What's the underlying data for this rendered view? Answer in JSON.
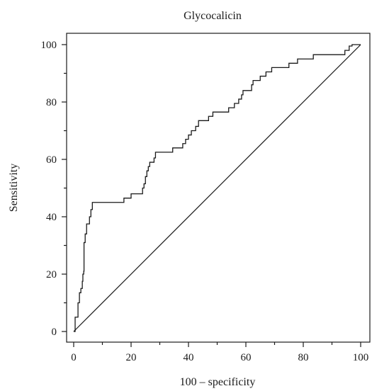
{
  "chart_data": {
    "type": "line",
    "title": "Glycocalicin",
    "xlabel": "100 – specificity",
    "ylabel": "Sensitivity",
    "xlim": [
      0,
      100
    ],
    "ylim": [
      0,
      100
    ],
    "xticks": [
      0,
      20,
      40,
      60,
      80,
      100
    ],
    "yticks": [
      0,
      20,
      40,
      60,
      80,
      100
    ],
    "grid": false,
    "series": [
      {
        "kind": "step",
        "points": [
          [
            0,
            0
          ],
          [
            0.5,
            0
          ],
          [
            0.5,
            5
          ],
          [
            1.5,
            5
          ],
          [
            1.5,
            10
          ],
          [
            2,
            10
          ],
          [
            2,
            13.5
          ],
          [
            2.5,
            13.5
          ],
          [
            2.5,
            15
          ],
          [
            3,
            15
          ],
          [
            3,
            17.5
          ],
          [
            3.2,
            17.5
          ],
          [
            3.2,
            20
          ],
          [
            3.5,
            20
          ],
          [
            3.5,
            21
          ],
          [
            3.6,
            21
          ],
          [
            3.6,
            31
          ],
          [
            4,
            31
          ],
          [
            4,
            34
          ],
          [
            4.5,
            34
          ],
          [
            4.5,
            37.5
          ],
          [
            5.5,
            37.5
          ],
          [
            5.5,
            40
          ],
          [
            6,
            40
          ],
          [
            6,
            42.5
          ],
          [
            6.5,
            42.5
          ],
          [
            6.5,
            45
          ],
          [
            17.5,
            45
          ],
          [
            17.5,
            46.5
          ],
          [
            20,
            46.5
          ],
          [
            20,
            48
          ],
          [
            24,
            48
          ],
          [
            24,
            50
          ],
          [
            24.5,
            50
          ],
          [
            24.5,
            51.5
          ],
          [
            25,
            51.5
          ],
          [
            25,
            54
          ],
          [
            25.5,
            54
          ],
          [
            25.5,
            56
          ],
          [
            26,
            56
          ],
          [
            26,
            57.5
          ],
          [
            26.5,
            57.5
          ],
          [
            26.5,
            59
          ],
          [
            28,
            59
          ],
          [
            28,
            60.5
          ],
          [
            28.5,
            60.5
          ],
          [
            28.5,
            62.5
          ],
          [
            34.5,
            62.5
          ],
          [
            34.5,
            64
          ],
          [
            38,
            64
          ],
          [
            38,
            65.5
          ],
          [
            39,
            65.5
          ],
          [
            39,
            67
          ],
          [
            40,
            67
          ],
          [
            40,
            68.5
          ],
          [
            41,
            68.5
          ],
          [
            41,
            70
          ],
          [
            42.5,
            70
          ],
          [
            42.5,
            71.5
          ],
          [
            43.5,
            71.5
          ],
          [
            43.5,
            73.5
          ],
          [
            47,
            73.5
          ],
          [
            47,
            75
          ],
          [
            48.5,
            75
          ],
          [
            48.5,
            76.5
          ],
          [
            54,
            76.5
          ],
          [
            54,
            78
          ],
          [
            56,
            78
          ],
          [
            56,
            79.5
          ],
          [
            57.5,
            79.5
          ],
          [
            57.5,
            81
          ],
          [
            58.5,
            81
          ],
          [
            58.5,
            82.5
          ],
          [
            59,
            82.5
          ],
          [
            59,
            84
          ],
          [
            62,
            84
          ],
          [
            62,
            86
          ],
          [
            62.5,
            86
          ],
          [
            62.5,
            87.5
          ],
          [
            65,
            87.5
          ],
          [
            65,
            89
          ],
          [
            67,
            89
          ],
          [
            67,
            90.5
          ],
          [
            69,
            90.5
          ],
          [
            69,
            92
          ],
          [
            75,
            92
          ],
          [
            75,
            93.5
          ],
          [
            78,
            93.5
          ],
          [
            78,
            95
          ],
          [
            83.5,
            95
          ],
          [
            83.5,
            96.5
          ],
          [
            94.5,
            96.5
          ],
          [
            94.5,
            98
          ],
          [
            96,
            98
          ],
          [
            96,
            99.5
          ],
          [
            97,
            99.5
          ],
          [
            97,
            100
          ],
          [
            100,
            100
          ]
        ]
      },
      {
        "kind": "reference",
        "points": [
          [
            0,
            0
          ],
          [
            100,
            100
          ]
        ]
      }
    ]
  }
}
